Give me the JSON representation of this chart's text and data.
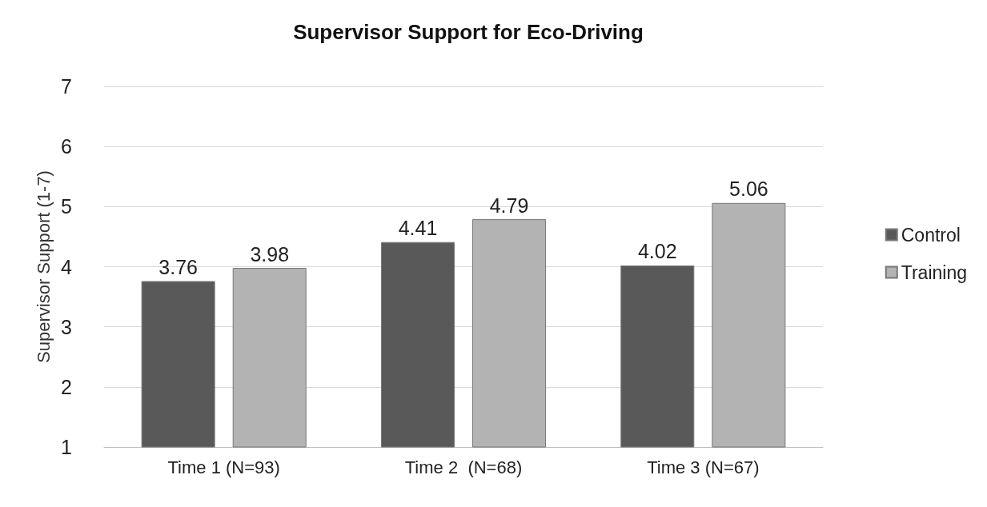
{
  "chart_data": {
    "type": "bar",
    "title": "Supervisor Support for Eco-Driving",
    "ylabel": "Supervisor Support (1-7)",
    "categories": [
      "Time 1 (N=93)",
      "Time 2  (N=68)",
      "Time 3 (N=67)"
    ],
    "series": [
      {
        "name": "Control",
        "color": "#595959",
        "values": [
          3.76,
          4.41,
          4.02
        ]
      },
      {
        "name": "Training",
        "color": "#b3b3b3",
        "values": [
          3.98,
          4.79,
          5.06
        ]
      }
    ],
    "ylim": [
      1,
      7
    ],
    "yticks": [
      1,
      2,
      3,
      4,
      5,
      6,
      7
    ],
    "grid": "y",
    "legend": "right",
    "data_labels": true
  }
}
